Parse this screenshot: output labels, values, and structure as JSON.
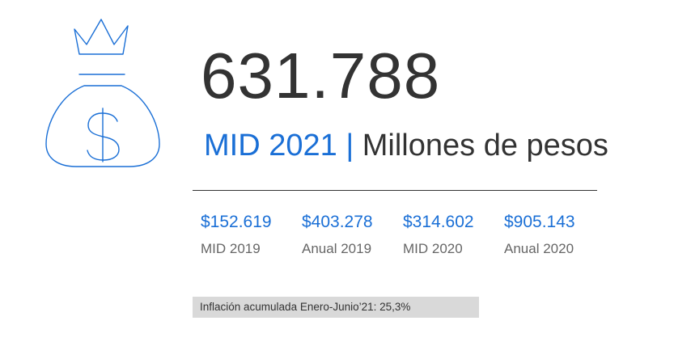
{
  "main_value": "631.788",
  "subtitle": {
    "period": "MID 2021",
    "separator": "|",
    "unit": "Millones de pesos"
  },
  "stats": [
    {
      "value": "$152.619",
      "label": "MID 2019"
    },
    {
      "value": "$403.278",
      "label": "Anual 2019"
    },
    {
      "value": "$314.602",
      "label": "MID 2020"
    },
    {
      "value": "$905.143",
      "label": "Anual 2020"
    }
  ],
  "footnote": "Inflación acumulada Enero-Junio’21: 25,3%",
  "icon": "money-bag-icon",
  "colors": {
    "accent": "#1a6fd6",
    "text": "#333333",
    "muted": "#666666",
    "footnote_bg": "#d9d9d9"
  }
}
